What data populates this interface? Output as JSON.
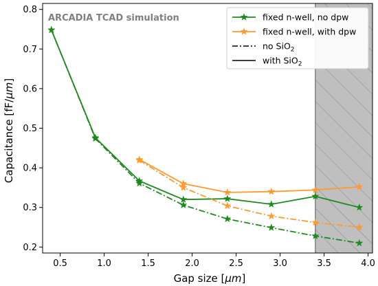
{
  "chart_data": {
    "type": "line",
    "annotation": "ARCADIA TCAD simulation",
    "xlabel_pre": "Gap size [",
    "xlabel_unit": "μm",
    "xlabel_post": "]",
    "ylabel_pre": "Capacitance [fF/",
    "ylabel_unit": "μm",
    "ylabel_post": "]",
    "xlim": [
      0.3,
      4.05
    ],
    "ylim": [
      0.185,
      0.815
    ],
    "xticks": [
      "0.5",
      "1.0",
      "1.5",
      "2.0",
      "2.5",
      "3.0",
      "3.5",
      "4.0"
    ],
    "yticks": [
      "0.2",
      "0.3",
      "0.4",
      "0.5",
      "0.6",
      "0.7",
      "0.8"
    ],
    "grid": false,
    "legend_position": "top-right",
    "shaded_region": {
      "x_from": 3.4,
      "x_to": 4.05,
      "pattern": "hatched",
      "color": "#bfbfbf"
    },
    "colors": {
      "green": "#1e8a1e",
      "orange": "#ff9a2e"
    },
    "legend": {
      "green_label": "fixed n-well, no dpw",
      "orange_label": "fixed n-well, with dpw",
      "dashdot_pre": "no SiO",
      "dashdot_sub": "2",
      "solid_pre": "with SiO",
      "solid_sub": "2"
    },
    "series": [
      {
        "id": "green-solid",
        "color": "#1e8a1e",
        "line": "solid",
        "marker": "star",
        "x": [
          0.4,
          0.9,
          1.4,
          1.9,
          2.4,
          2.9,
          3.4,
          3.9
        ],
        "y": [
          0.748,
          0.476,
          0.367,
          0.32,
          0.322,
          0.308,
          0.328,
          0.3
        ]
      },
      {
        "id": "green-dashdot",
        "color": "#1e8a1e",
        "line": "dashdot",
        "marker": "star",
        "x": [
          0.4,
          0.9,
          1.4,
          1.9,
          2.4,
          2.9,
          3.4,
          3.9
        ],
        "y": [
          0.748,
          0.474,
          0.361,
          0.306,
          0.271,
          0.249,
          0.228,
          0.21
        ]
      },
      {
        "id": "orange-solid",
        "color": "#ff9a2e",
        "line": "solid",
        "marker": "star",
        "x": [
          1.4,
          1.9,
          2.4,
          2.9,
          3.4,
          3.9
        ],
        "y": [
          0.421,
          0.36,
          0.338,
          0.34,
          0.344,
          0.352
        ]
      },
      {
        "id": "orange-dashdot",
        "color": "#ff9a2e",
        "line": "dashdot",
        "marker": "star",
        "x": [
          1.4,
          1.9,
          2.4,
          2.9,
          3.4,
          3.9
        ],
        "y": [
          0.419,
          0.35,
          0.304,
          0.278,
          0.262,
          0.25
        ]
      }
    ]
  }
}
